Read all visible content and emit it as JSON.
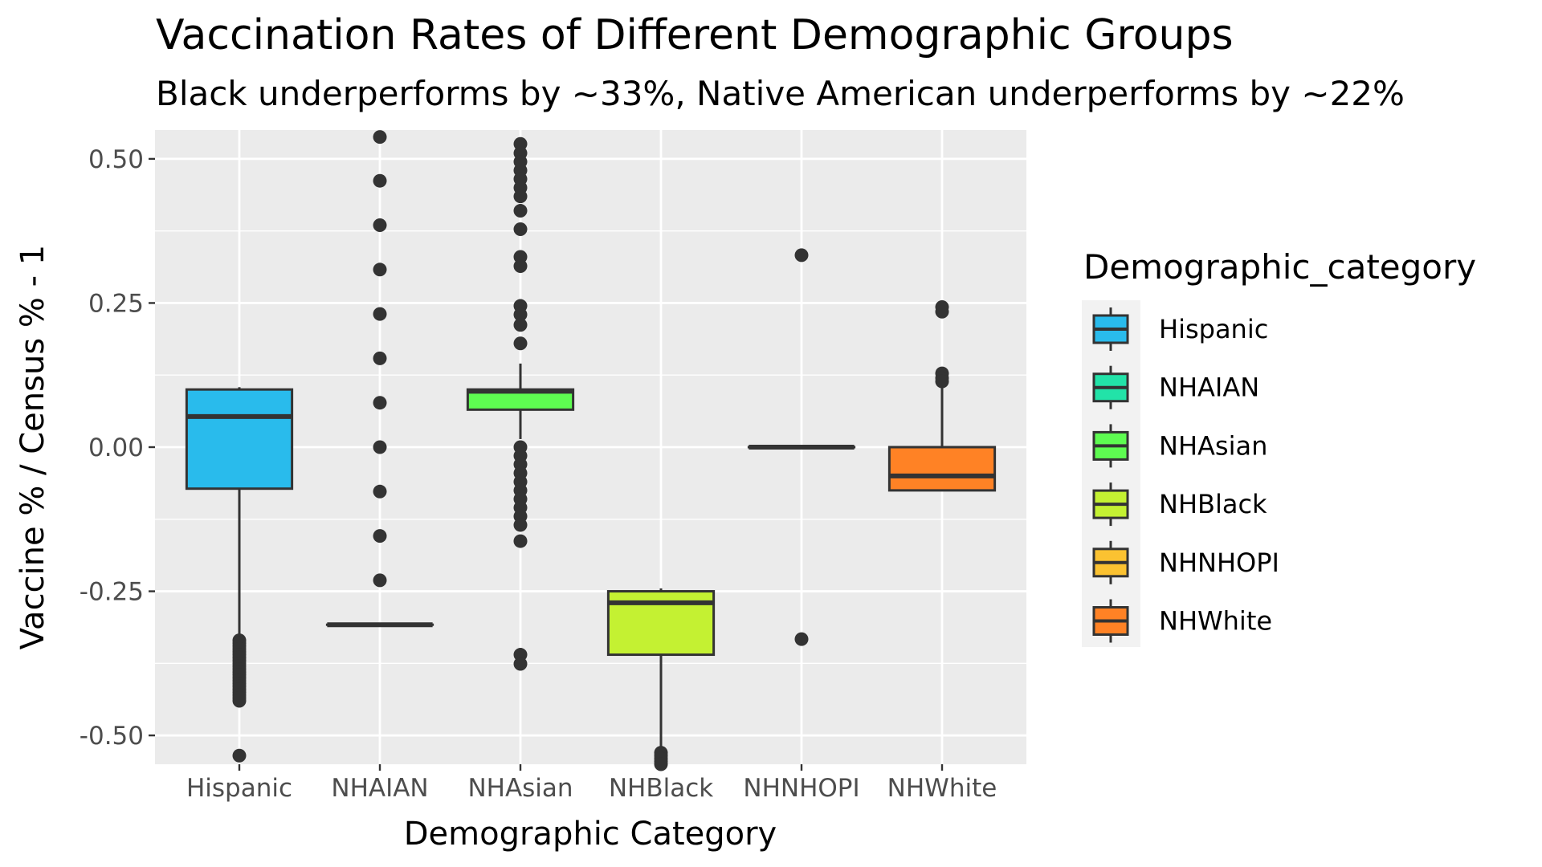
{
  "chart_data": {
    "type": "box",
    "title": "Vaccination Rates of Different Demographic Groups",
    "subtitle": "Black underperforms by ~33%, Native American underperforms by ~22%",
    "xlabel": "Demographic Category",
    "ylabel": "Vaccine % / Census % - 1",
    "ylim": [
      -0.55,
      0.55
    ],
    "yticks": [
      0.5,
      0.25,
      0.0,
      -0.25,
      -0.5
    ],
    "ytick_labels": [
      "0.50",
      "0.25",
      "0.00",
      "-0.25",
      "-0.50"
    ],
    "categories": [
      "Hispanic",
      "NHAIAN",
      "NHAsian",
      "NHBlack",
      "NHNHOPI",
      "NHWhite"
    ],
    "legend": {
      "title": "Demographic_category",
      "placement": "right",
      "entries": [
        "Hispanic",
        "NHAIAN",
        "NHAsian",
        "NHBlack",
        "NHNHOPI",
        "NHWhite"
      ]
    },
    "grid": true,
    "boxes": [
      {
        "category": "Hispanic",
        "color": "#29BBEC",
        "min": -0.325,
        "q1": -0.072,
        "median": 0.053,
        "q3": 0.1,
        "max": 0.104,
        "outliers": [
          -0.335,
          -0.34,
          -0.345,
          -0.35,
          -0.355,
          -0.36,
          -0.365,
          -0.37,
          -0.375,
          -0.38,
          -0.385,
          -0.39,
          -0.395,
          -0.4,
          -0.405,
          -0.41,
          -0.415,
          -0.42,
          -0.425,
          -0.43,
          -0.435,
          -0.44,
          -0.535
        ]
      },
      {
        "category": "NHAIAN",
        "color": "#22E3A8",
        "min": -0.308,
        "q1": -0.308,
        "median": -0.308,
        "q3": -0.308,
        "max": -0.308,
        "outliers": [
          0.538,
          0.462,
          0.385,
          0.308,
          0.231,
          0.154,
          0.077,
          0.0,
          -0.077,
          -0.154,
          -0.231
        ]
      },
      {
        "category": "NHAsian",
        "color": "#5EFC51",
        "min": 0.014,
        "q1": 0.065,
        "median": 0.097,
        "q3": 0.1,
        "max": 0.145,
        "outliers": [
          0.526,
          0.51,
          0.495,
          0.48,
          0.465,
          0.45,
          0.435,
          0.41,
          0.378,
          0.33,
          0.314,
          0.245,
          0.23,
          0.212,
          0.18,
          0.0,
          -0.015,
          -0.03,
          -0.045,
          -0.06,
          -0.075,
          -0.09,
          -0.105,
          -0.12,
          -0.135,
          -0.163,
          -0.36,
          -0.376
        ]
      },
      {
        "category": "NHBlack",
        "color": "#C4F132",
        "min": -0.53,
        "q1": -0.36,
        "median": -0.27,
        "q3": -0.25,
        "max": -0.245,
        "outliers": [
          -0.53,
          -0.535,
          -0.54,
          -0.545,
          -0.55
        ]
      },
      {
        "category": "NHNHOPI",
        "color": "#FBC231",
        "min": 0.0,
        "q1": 0.0,
        "median": 0.0,
        "q3": 0.0,
        "max": 0.0,
        "outliers": [
          0.333,
          -0.333
        ]
      },
      {
        "category": "NHWhite",
        "color": "#FF8225",
        "min": -0.075,
        "q1": -0.075,
        "median": -0.05,
        "q3": 0.0,
        "max": 0.108,
        "outliers": [
          0.243,
          0.235,
          0.128,
          0.12,
          0.114
        ]
      }
    ]
  }
}
